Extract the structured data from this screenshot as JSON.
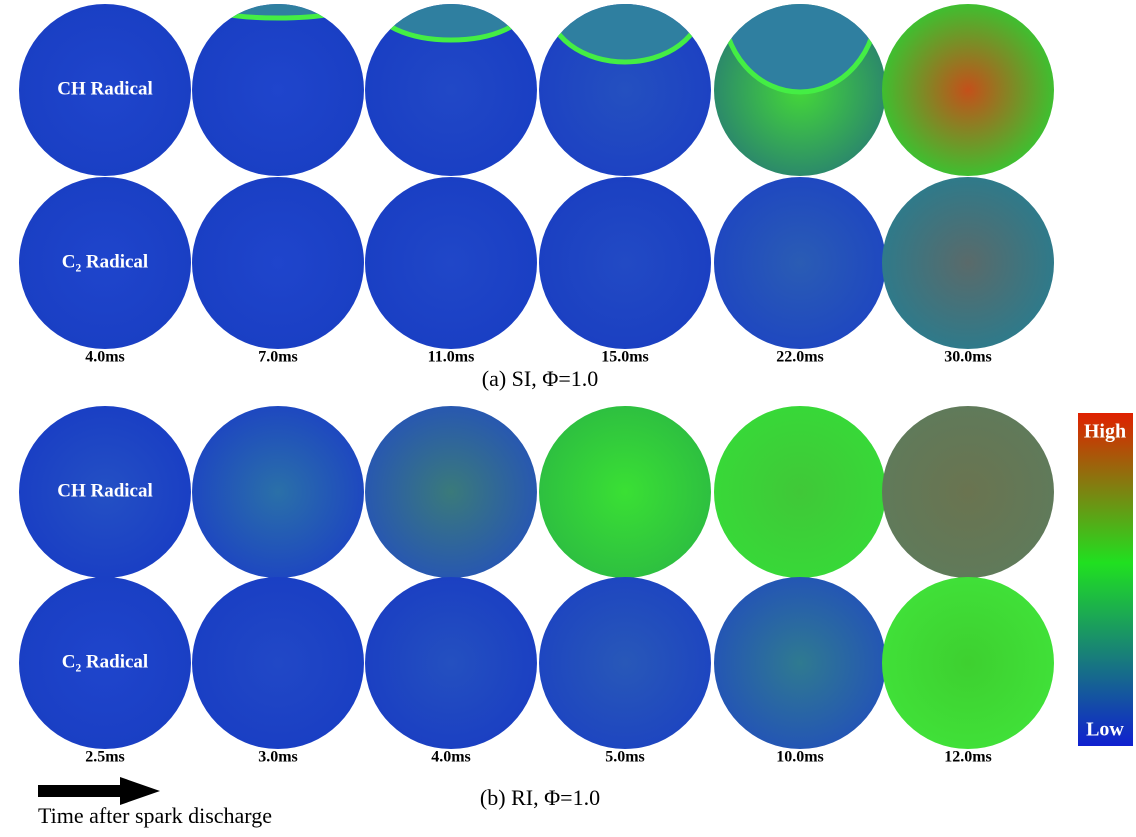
{
  "panels": [
    {
      "caption": "(a) SI, Φ=1.0",
      "rows": [
        "CH Radical",
        "C₂ Radical"
      ],
      "times": [
        "4.0ms",
        "7.0ms",
        "11.0ms",
        "15.0ms",
        "22.0ms",
        "30.0ms"
      ]
    },
    {
      "caption": "(b) RI, Φ=1.0",
      "rows": [
        "CH Radical",
        "C₂ Radical"
      ],
      "times": [
        "2.5ms",
        "3.0ms",
        "4.0ms",
        "5.0ms",
        "10.0ms",
        "12.0ms"
      ]
    }
  ],
  "colorbar": {
    "high": "High",
    "low": "Low"
  },
  "arrow_label": "Time after spark discharge"
}
